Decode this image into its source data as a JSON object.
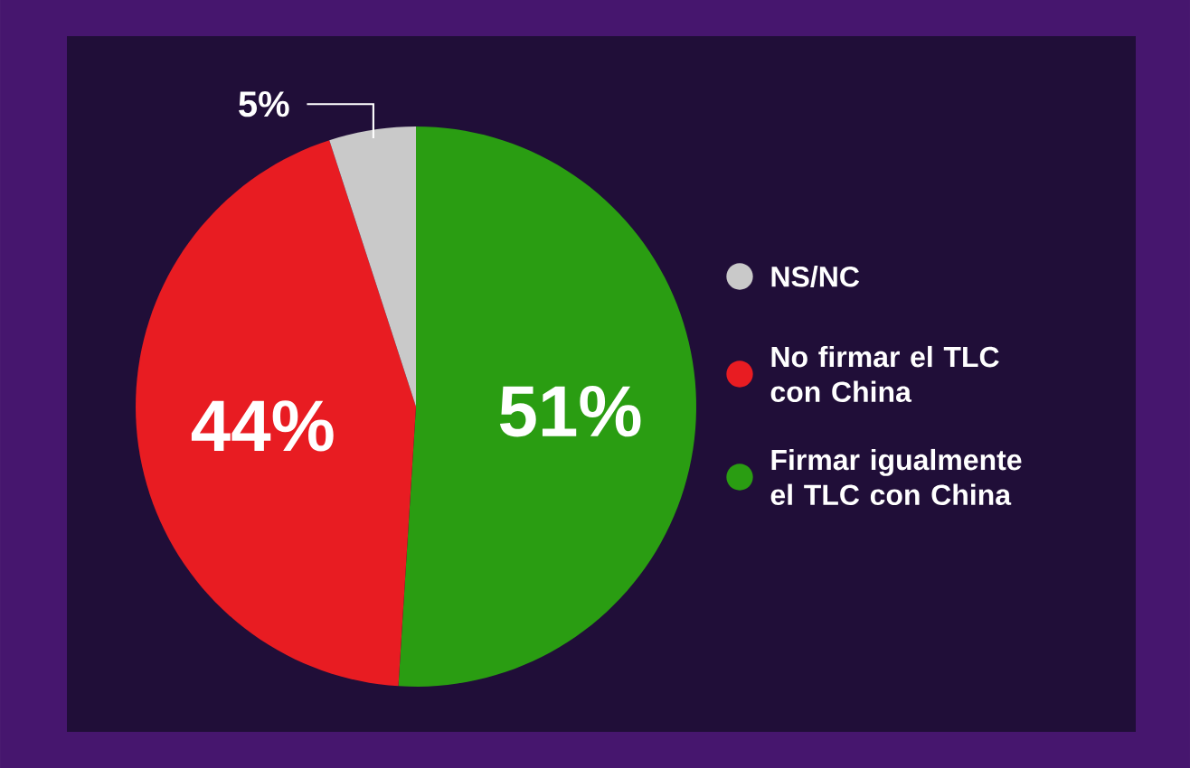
{
  "chart_data": {
    "type": "pie",
    "categories": [
      "Firmar igualmente el TLC con China",
      "No firmar el TLC con China",
      "NS/NC"
    ],
    "values": [
      51,
      44,
      5
    ],
    "colors": [
      "#2a9d12",
      "#e81c22",
      "#c9c9c9"
    ],
    "value_labels": [
      "51%",
      "44%",
      "5%"
    ],
    "legend": "right"
  }
}
